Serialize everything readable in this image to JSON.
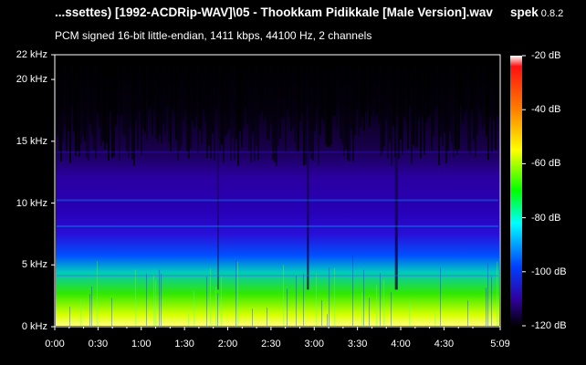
{
  "header": {
    "file_title": "...ssettes) [1992-ACDRip-WAV]\\05 - Thookkam Pidikkale [Male Version].wav",
    "app_name": "spek",
    "app_version": "0.8.2",
    "info_line": "PCM signed 16-bit little-endian, 1411 kbps, 44100 Hz, 2 channels"
  },
  "frequency_axis": {
    "labels": [
      "22 kHz",
      "20 kHz",
      "15 kHz",
      "10 kHz",
      "5 kHz",
      "0 kHz"
    ],
    "values_khz": [
      22,
      20,
      15,
      10,
      5,
      0
    ]
  },
  "time_axis": {
    "labels": [
      "0:00",
      "0:30",
      "1:00",
      "1:30",
      "2:00",
      "2:30",
      "3:00",
      "3:30",
      "4:00",
      "4:30",
      "5:09"
    ],
    "values_sec": [
      0,
      30,
      60,
      90,
      120,
      150,
      180,
      210,
      240,
      270,
      309
    ]
  },
  "db_scale": {
    "labels": [
      "-20 dB",
      "-40 dB",
      "-60 dB",
      "-80 dB",
      "-100 dB",
      "-120 dB"
    ],
    "values_db": [
      -20,
      -40,
      -60,
      -80,
      -100,
      -120
    ]
  },
  "colors": {
    "background": "#000000",
    "text": "#ffffff",
    "gradient": [
      "#ffffff",
      "#ff0000",
      "#ffff00",
      "#00ff00",
      "#00ffff",
      "#0000ff",
      "#4000ff",
      "#1a0033",
      "#000000"
    ]
  }
}
